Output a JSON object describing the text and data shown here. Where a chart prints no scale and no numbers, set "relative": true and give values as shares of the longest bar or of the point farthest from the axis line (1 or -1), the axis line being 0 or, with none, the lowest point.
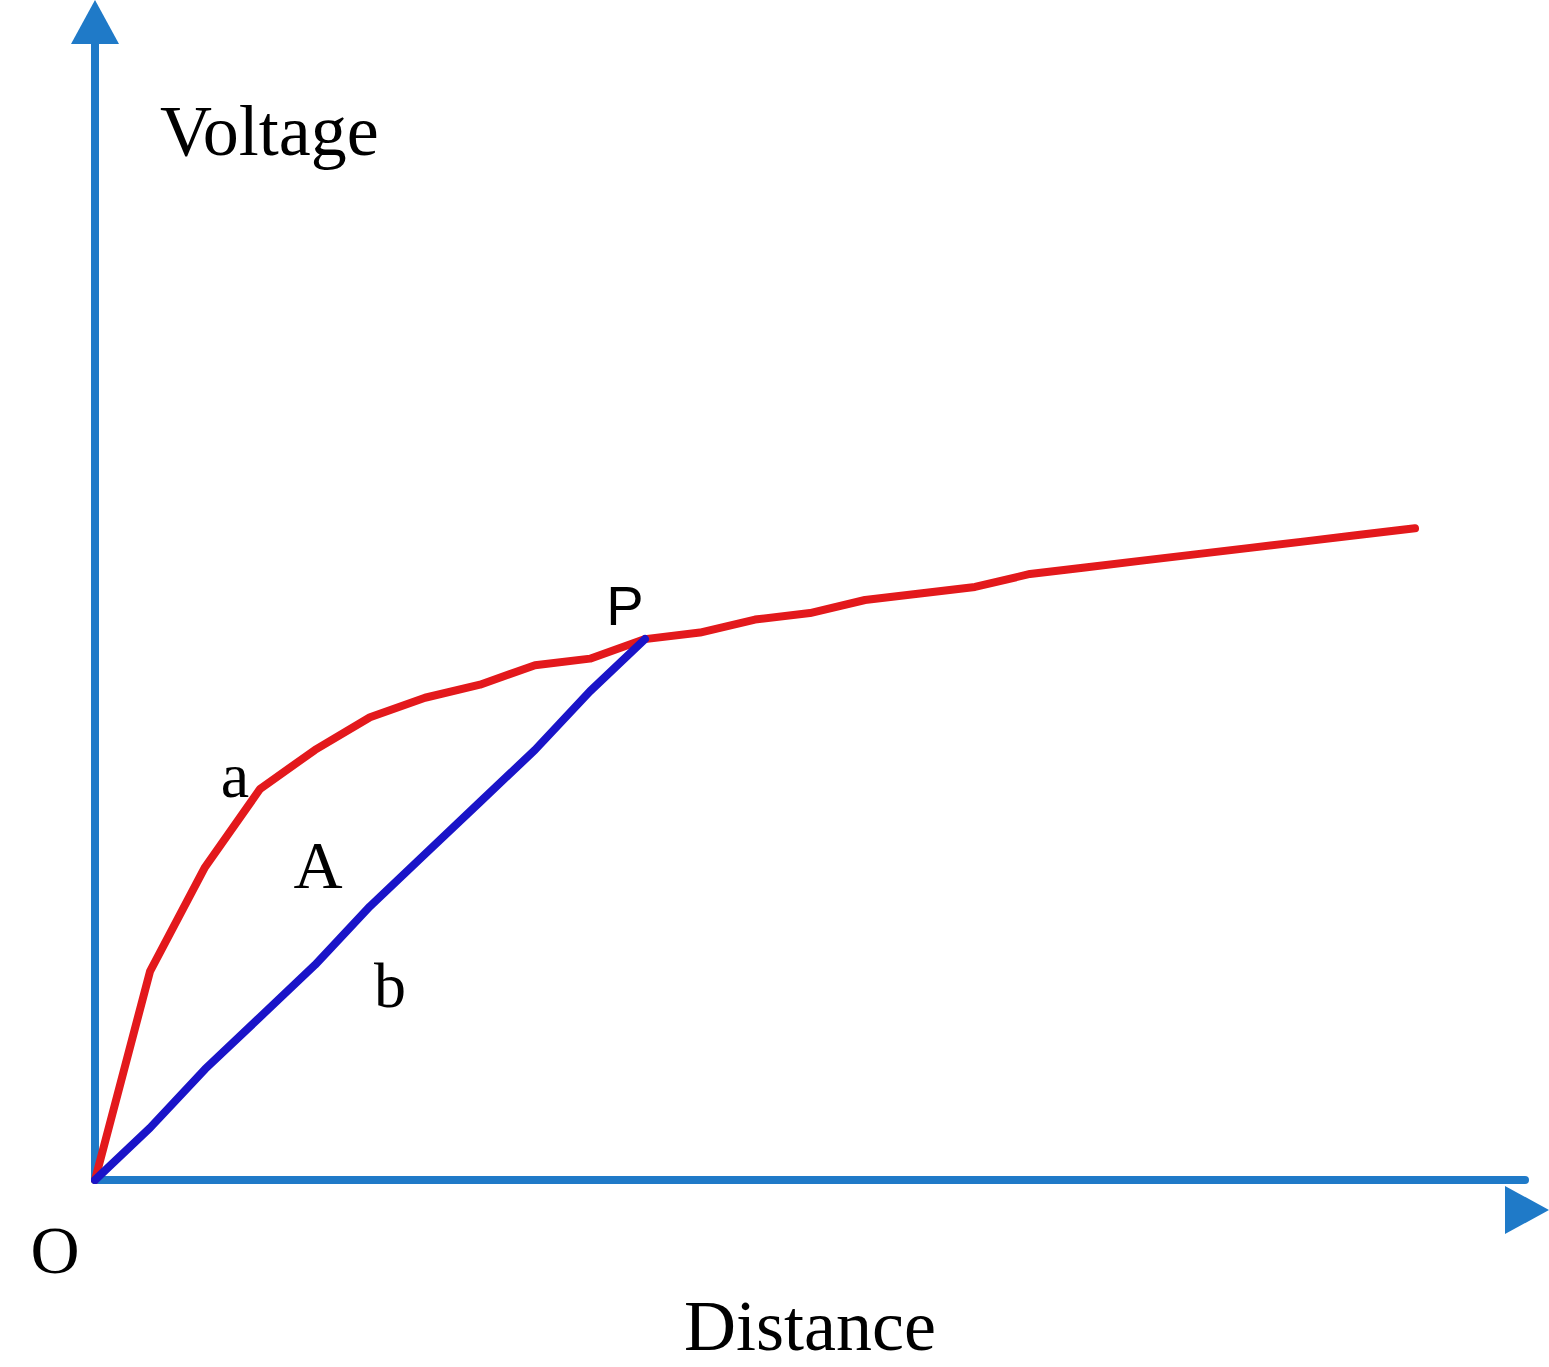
{
  "chart_data": {
    "type": "line",
    "relative": true,
    "xlabel": "Distance",
    "ylabel": "Voltage",
    "categories": [
      null,
      null,
      null,
      null,
      null,
      null,
      null,
      null,
      null,
      null,
      null,
      null,
      null,
      null,
      null,
      null,
      null,
      null,
      null,
      null,
      null,
      null,
      null,
      null,
      null,
      null,
      null
    ],
    "series": [
      {
        "color": "#e3191c",
        "values": [
          0,
          0.32,
          0.48,
          0.6,
          0.66,
          0.71,
          0.74,
          0.76,
          0.79,
          0.8,
          0.83,
          0.84,
          0.86,
          0.87,
          0.89,
          0.9,
          0.91,
          0.93,
          0.94,
          0.95,
          0.96,
          0.97,
          0.98,
          0.99,
          1,
          null,
          null
        ]
      },
      {
        "color": "#1a14c8",
        "values": [
          0,
          0.08,
          0.17,
          0.25,
          0.33,
          0.42,
          0.5,
          0.58,
          0.66,
          0.75,
          0.83,
          null,
          null,
          null,
          null,
          null,
          null,
          null,
          null,
          null,
          null,
          null,
          null,
          null,
          null,
          null,
          null
        ]
      }
    ],
    "annotations": [
      "O",
      "P",
      "a",
      "A",
      "b"
    ],
    "grid": false,
    "marker": "none",
    "line_style": "solid"
  }
}
